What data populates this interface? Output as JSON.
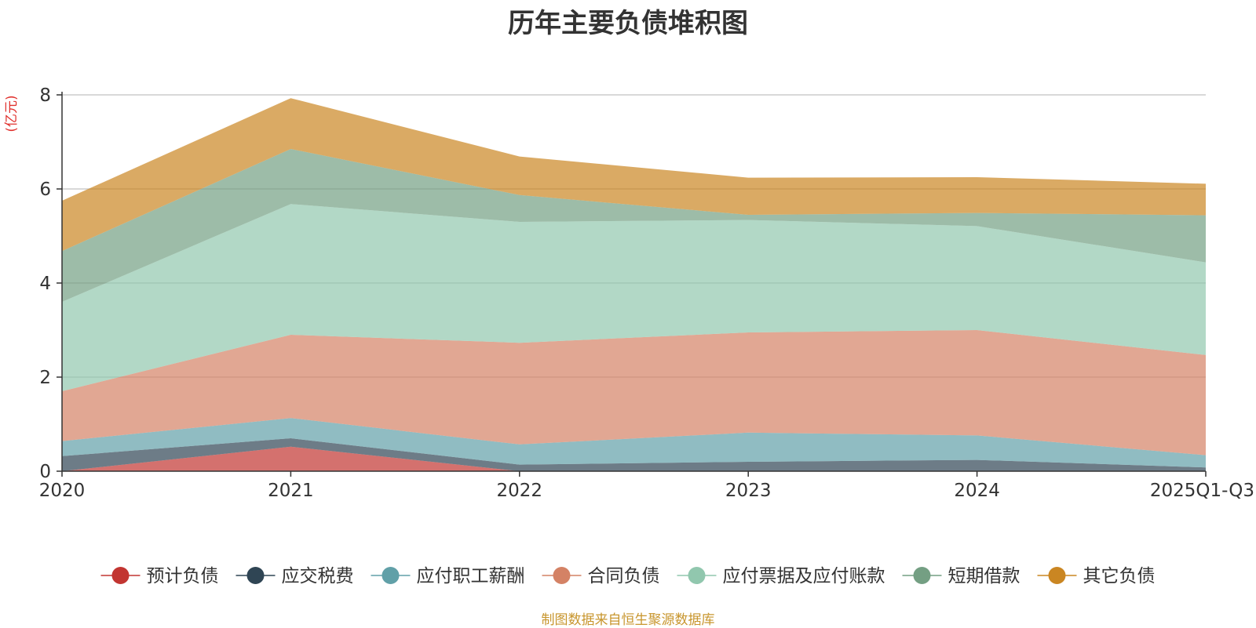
{
  "chart_data": {
    "type": "area",
    "stacked": true,
    "title": "历年主要负债堆积图",
    "ylabel": "(亿元)",
    "xlabel": "",
    "ylim": [
      0,
      8
    ],
    "yticks": [
      0,
      2,
      4,
      6,
      8
    ],
    "categories": [
      "2020",
      "2021",
      "2022",
      "2023",
      "2024",
      "2025Q1-Q3"
    ],
    "legend_position": "bottom",
    "series": [
      {
        "name": "预计负债",
        "color": "#c23531",
        "values": [
          0.0,
          0.52,
          0.0,
          0.0,
          0.0,
          0.0
        ]
      },
      {
        "name": "应交税费",
        "color": "#2f4554",
        "values": [
          0.32,
          0.18,
          0.14,
          0.2,
          0.24,
          0.08
        ]
      },
      {
        "name": "应付职工薪酬",
        "color": "#61a0a8",
        "values": [
          0.32,
          0.43,
          0.43,
          0.62,
          0.52,
          0.26
        ]
      },
      {
        "name": "合同负债",
        "color": "#d48265",
        "values": [
          1.06,
          1.77,
          2.16,
          2.13,
          2.24,
          2.13
        ]
      },
      {
        "name": "应付票据及应付账款",
        "color": "#91c7ae",
        "values": [
          1.9,
          2.78,
          2.57,
          2.39,
          2.21,
          1.97
        ]
      },
      {
        "name": "短期借款",
        "color": "#749f83",
        "values": [
          1.08,
          1.17,
          0.57,
          0.11,
          0.28,
          1.0
        ]
      },
      {
        "name": "其它负债",
        "color": "#ca8622",
        "values": [
          1.07,
          1.08,
          0.82,
          0.79,
          0.76,
          0.67
        ]
      }
    ]
  },
  "footer": {
    "source": "制图数据来自恒生聚源数据库"
  }
}
